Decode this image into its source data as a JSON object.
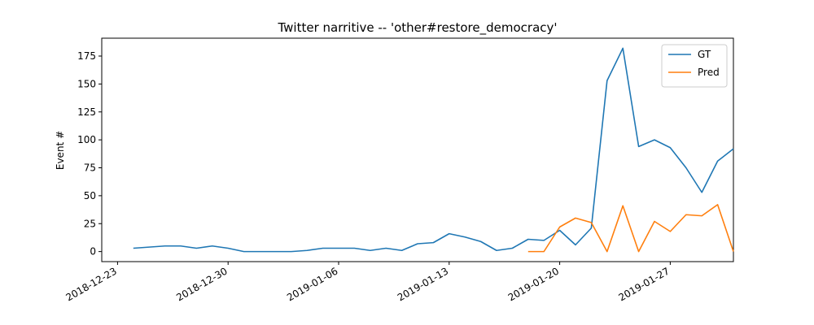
{
  "chart_data": {
    "type": "line",
    "title": "Twitter narritive -- 'other#restore_democracy'",
    "xlabel": "",
    "ylabel": "Event #",
    "x_ticks": [
      "2018-12-23",
      "2018-12-30",
      "2019-01-06",
      "2019-01-13",
      "2019-01-20",
      "2019-01-27"
    ],
    "y_ticks": [
      0,
      25,
      50,
      75,
      100,
      125,
      150,
      175
    ],
    "xlim": [
      "2018-12-22",
      "2019-01-31"
    ],
    "ylim": [
      -9,
      191
    ],
    "grid": false,
    "legend_position": "top-right",
    "series": [
      {
        "name": "GT",
        "color": "#1f77b4",
        "x": [
          "2018-12-24",
          "2018-12-25",
          "2018-12-26",
          "2018-12-27",
          "2018-12-28",
          "2018-12-29",
          "2018-12-30",
          "2018-12-31",
          "2019-01-01",
          "2019-01-02",
          "2019-01-03",
          "2019-01-04",
          "2019-01-05",
          "2019-01-06",
          "2019-01-07",
          "2019-01-08",
          "2019-01-09",
          "2019-01-10",
          "2019-01-11",
          "2019-01-12",
          "2019-01-13",
          "2019-01-14",
          "2019-01-15",
          "2019-01-16",
          "2019-01-17",
          "2019-01-18",
          "2019-01-19",
          "2019-01-20",
          "2019-01-21",
          "2019-01-22",
          "2019-01-23",
          "2019-01-24",
          "2019-01-25",
          "2019-01-26",
          "2019-01-27",
          "2019-01-28",
          "2019-01-29",
          "2019-01-30",
          "2019-01-31"
        ],
        "values": [
          3,
          4,
          5,
          5,
          3,
          5,
          3,
          0,
          0,
          0,
          0,
          1,
          3,
          3,
          3,
          1,
          3,
          1,
          7,
          8,
          16,
          13,
          9,
          1,
          3,
          11,
          10,
          19,
          6,
          21,
          153,
          182,
          94,
          100,
          93,
          75,
          53,
          81,
          92
        ]
      },
      {
        "name": "Pred",
        "color": "#ff7f0e",
        "x": [
          "2019-01-18",
          "2019-01-19",
          "2019-01-20",
          "2019-01-21",
          "2019-01-22",
          "2019-01-23",
          "2019-01-24",
          "2019-01-25",
          "2019-01-26",
          "2019-01-27",
          "2019-01-28",
          "2019-01-29",
          "2019-01-30",
          "2019-01-31"
        ],
        "values": [
          0,
          0,
          22,
          30,
          26,
          0,
          41,
          0,
          27,
          18,
          33,
          32,
          42,
          0
        ]
      }
    ]
  }
}
